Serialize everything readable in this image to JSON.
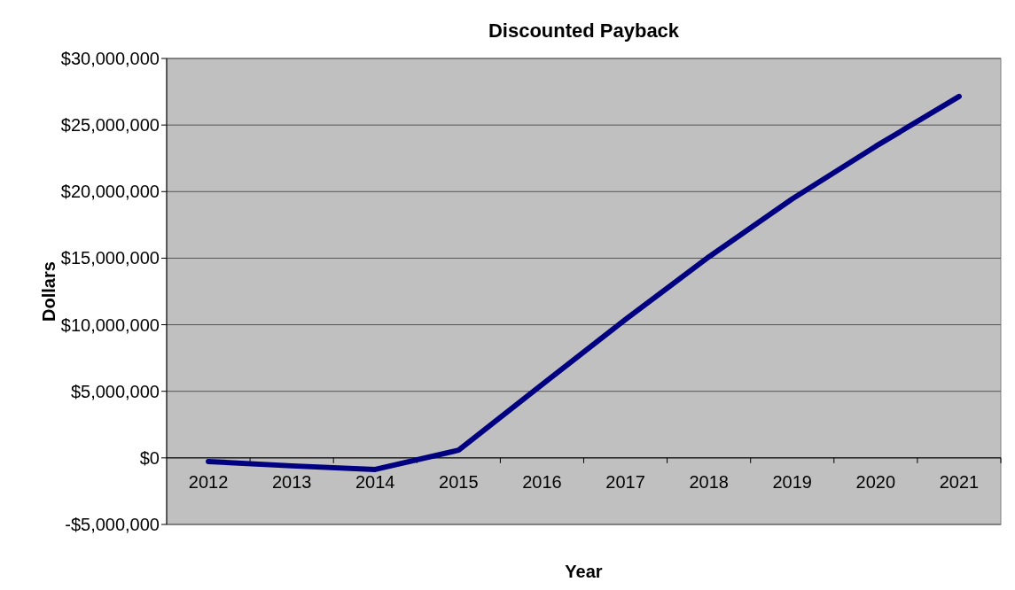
{
  "chart_data": {
    "type": "line",
    "title": "Discounted Payback",
    "xlabel": "Year",
    "ylabel": "Dollars",
    "categories": [
      "2012",
      "2013",
      "2014",
      "2015",
      "2016",
      "2017",
      "2018",
      "2019",
      "2020",
      "2021"
    ],
    "series": [
      {
        "color": "#000080",
        "values": [
          -270000,
          -600000,
          -870000,
          580000,
          5500000,
          10400000,
          15100000,
          19450000,
          23400000,
          27150000
        ]
      }
    ],
    "ylim": [
      -5000000,
      30000000
    ],
    "yticks": [
      {
        "value": -5000000,
        "label": "-$5,000,000"
      },
      {
        "value": 0,
        "label": "$0"
      },
      {
        "value": 5000000,
        "label": "$5,000,000"
      },
      {
        "value": 10000000,
        "label": "$10,000,000"
      },
      {
        "value": 15000000,
        "label": "$15,000,000"
      },
      {
        "value": 20000000,
        "label": "$20,000,000"
      },
      {
        "value": 25000000,
        "label": "$25,000,000"
      },
      {
        "value": 30000000,
        "label": "$30,000,000"
      }
    ],
    "grid": "y",
    "marker": "none",
    "line_style": "solid"
  }
}
